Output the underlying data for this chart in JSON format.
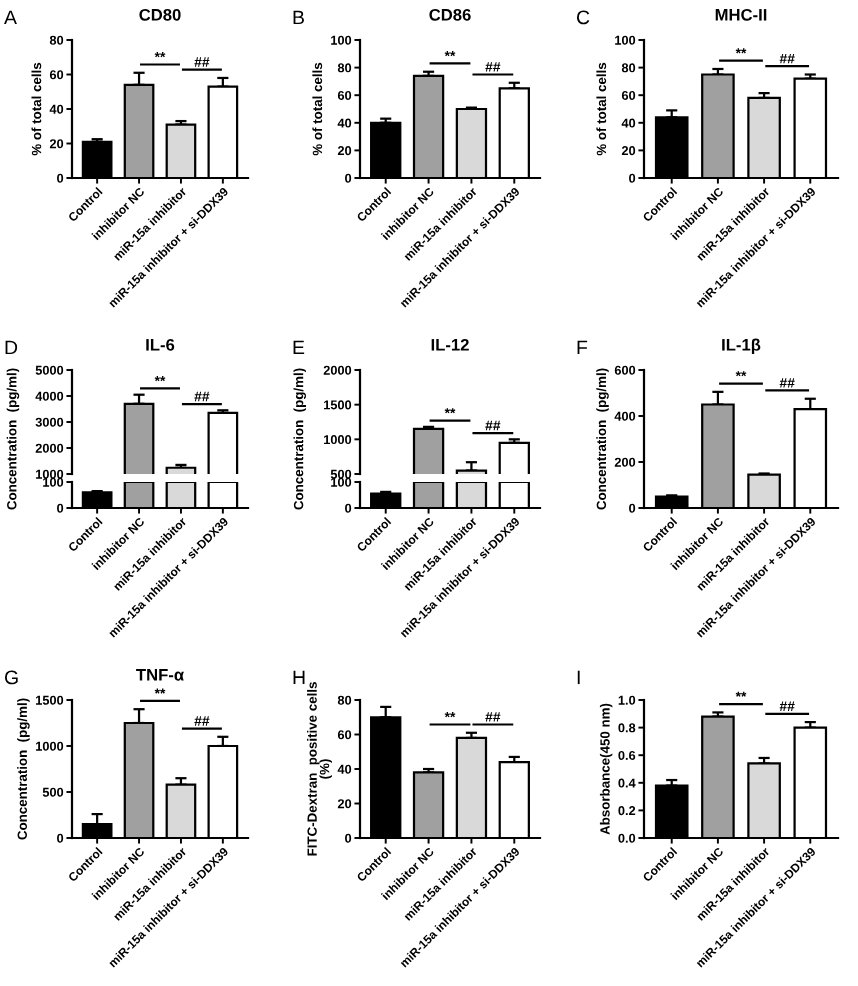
{
  "chart_data": [
    {
      "type": "bar",
      "title": "CD80",
      "ylabel": "% of total cells",
      "annotations": [
        "A",
        "**",
        "##"
      ],
      "categories": [
        "Control",
        "inhibitor NC",
        "miR-15a inhibitor",
        "miR-15a inhibitor + si-DDX39"
      ],
      "colors": [
        "#000000",
        "#a0a0a0",
        "#d9d9d9",
        "#ffffff"
      ],
      "values": [
        21,
        54,
        31,
        53
      ],
      "errors": [
        [
          21,
          22.5
        ],
        [
          54,
          61
        ],
        [
          31,
          33
        ],
        [
          53,
          58
        ]
      ],
      "ylim": [
        0,
        80
      ],
      "yticks": [
        0,
        20,
        40,
        60,
        80
      ]
    },
    {
      "type": "bar",
      "title": "CD86",
      "ylabel": "% of total cells",
      "annotations": [
        "B",
        "**",
        "##"
      ],
      "categories": [
        "Control",
        "inhibitor NC",
        "miR-15a inhibitor",
        "miR-15a inhibitor + si-DDX39"
      ],
      "colors": [
        "#000000",
        "#a0a0a0",
        "#d9d9d9",
        "#ffffff"
      ],
      "values": [
        40,
        74,
        50,
        65
      ],
      "errors": [
        [
          40,
          43
        ],
        [
          74,
          77
        ],
        [
          50,
          51
        ],
        [
          65,
          69
        ]
      ],
      "ylim": [
        0,
        100
      ],
      "yticks": [
        0,
        20,
        40,
        60,
        80,
        100
      ]
    },
    {
      "type": "bar",
      "title": "MHC-II",
      "ylabel": "% of total cells",
      "annotations": [
        "C",
        "**",
        "##"
      ],
      "categories": [
        "Control",
        "inhibitor NC",
        "miR-15a inhibitor",
        "miR-15a inhibitor + si-DDX39"
      ],
      "colors": [
        "#000000",
        "#a0a0a0",
        "#d9d9d9",
        "#ffffff"
      ],
      "values": [
        44,
        75,
        58,
        72
      ],
      "errors": [
        [
          44,
          49
        ],
        [
          75,
          79
        ],
        [
          58,
          61.5
        ],
        [
          72,
          75
        ]
      ],
      "ylim": [
        0,
        100
      ],
      "yticks": [
        0,
        20,
        40,
        60,
        80,
        100
      ]
    },
    {
      "type": "bar",
      "title": "IL-6",
      "ylabel": "Concentration  (pg/ml)",
      "annotations": [
        "D",
        "**",
        "##"
      ],
      "tick_labels": "y",
      "colors": [
        "#000000",
        "#a0a0a0",
        "#d9d9d9",
        "#ffffff"
      ],
      "values": [
        null,
        3700,
        1240,
        3350
      ],
      "errors": [
        null,
        [
          3700,
          4050
        ],
        [
          1240,
          1350
        ],
        [
          3350,
          3450
        ]
      ],
      "ylim": [
        1000,
        5000
      ],
      "yticks": [
        1000,
        2000,
        3000,
        4000,
        5000
      ]
    },
    {
      "type": "bar",
      "categories": [
        "Control",
        "inhibitor NC",
        "miR-15a inhibitor",
        "miR-15a inhibitor + si-DDX39"
      ],
      "colors": [
        "#000000",
        "#a0a0a0",
        "#d9d9d9",
        "#ffffff"
      ],
      "values": [
        60,
        100,
        100,
        100
      ],
      "errors": [
        [
          60,
          65
        ],
        null,
        null,
        null
      ],
      "ylim": [
        0,
        100
      ],
      "yticks": [
        0,
        100
      ]
    },
    {
      "type": "bar",
      "title": "IL-12",
      "ylabel": "Concentration  (pg/ml)",
      "annotations": [
        "E",
        "**",
        "##"
      ],
      "tick_labels": "y",
      "colors": [
        "#000000",
        "#a0a0a0",
        "#d9d9d9",
        "#ffffff"
      ],
      "values": [
        null,
        1150,
        550,
        950
      ],
      "errors": [
        null,
        [
          1150,
          1180
        ],
        [
          550,
          670
        ],
        [
          950,
          1000
        ]
      ],
      "ylim": [
        500,
        2000
      ],
      "yticks": [
        500,
        1000,
        1500,
        2000
      ]
    },
    {
      "type": "bar",
      "categories": [
        "Control",
        "inhibitor NC",
        "miR-15a inhibitor",
        "miR-15a inhibitor + si-DDX39"
      ],
      "colors": [
        "#000000",
        "#a0a0a0",
        "#d9d9d9",
        "#ffffff"
      ],
      "values": [
        55,
        100,
        100,
        100
      ],
      "errors": [
        [
          55,
          62
        ],
        null,
        null,
        null
      ],
      "ylim": [
        0,
        100
      ],
      "yticks": [
        0,
        100
      ]
    },
    {
      "type": "bar",
      "title": "IL-1β",
      "ylabel": "Concentration  (pg/ml)",
      "annotations": [
        "F",
        "**",
        "##"
      ],
      "categories": [
        "Control",
        "inhibitor NC",
        "miR-15a inhibitor",
        "miR-15a inhibitor + si-DDX39"
      ],
      "colors": [
        "#000000",
        "#a0a0a0",
        "#d9d9d9",
        "#ffffff"
      ],
      "values": [
        50,
        450,
        145,
        430
      ],
      "errors": [
        [
          50,
          55
        ],
        [
          450,
          505
        ],
        [
          145,
          150
        ],
        [
          430,
          475
        ]
      ],
      "ylim": [
        0,
        600
      ],
      "yticks": [
        0,
        200,
        400,
        600
      ]
    },
    {
      "type": "bar",
      "title": "TNF-α",
      "ylabel": "Concentration  (pg/ml)",
      "annotations": [
        "G",
        "**",
        "##"
      ],
      "categories": [
        "Control",
        "inhibitor NC",
        "miR-15a inhibitor",
        "miR-15a inhibitor + si-DDX39"
      ],
      "colors": [
        "#000000",
        "#a0a0a0",
        "#d9d9d9",
        "#ffffff"
      ],
      "values": [
        150,
        1250,
        580,
        1000
      ],
      "errors": [
        [
          150,
          260
        ],
        [
          1250,
          1400
        ],
        [
          580,
          650
        ],
        [
          1000,
          1100
        ]
      ],
      "ylim": [
        0,
        1500
      ],
      "yticks": [
        0,
        500,
        1000,
        1500
      ]
    },
    {
      "type": "bar",
      "ylabel": "FITC-Dextran  positive cells\n(%)",
      "annotations": [
        "H",
        "**",
        "##"
      ],
      "categories": [
        "Control",
        "inhibitor NC",
        "miR-15a inhibitor",
        "miR-15a inhibitor + si-DDX39"
      ],
      "colors": [
        "#000000",
        "#a0a0a0",
        "#d9d9d9",
        "#ffffff"
      ],
      "values": [
        70,
        38,
        58,
        44
      ],
      "errors": [
        [
          70,
          76
        ],
        [
          38,
          40
        ],
        [
          58,
          61
        ],
        [
          44,
          47
        ]
      ],
      "ylim": [
        0,
        80
      ],
      "yticks": [
        0,
        20,
        40,
        60,
        80
      ]
    },
    {
      "type": "bar",
      "ylabel": "Absorbance(450 nm)",
      "annotations": [
        "I",
        "**",
        "##"
      ],
      "categories": [
        "Control",
        "inhibitor NC",
        "miR-15a inhibitor",
        "miR-15a inhibitor + si-DDX39"
      ],
      "colors": [
        "#000000",
        "#a0a0a0",
        "#d9d9d9",
        "#ffffff"
      ],
      "values": [
        0.38,
        0.88,
        0.54,
        0.8
      ],
      "errors": [
        [
          0.38,
          0.42
        ],
        [
          0.88,
          0.91
        ],
        [
          0.54,
          0.58
        ],
        [
          0.8,
          0.84
        ]
      ],
      "ylim": [
        0,
        1.0
      ],
      "yticks": [
        {
          "value": 0,
          "label": "0.0"
        },
        {
          "value": 0.2,
          "label": "0.2"
        },
        {
          "value": 0.4,
          "label": "0.4"
        },
        {
          "value": 0.6,
          "label": "0.6"
        },
        {
          "value": 0.8,
          "label": "0.8"
        },
        {
          "value": 1.0,
          "label": "1.0"
        }
      ]
    }
  ]
}
